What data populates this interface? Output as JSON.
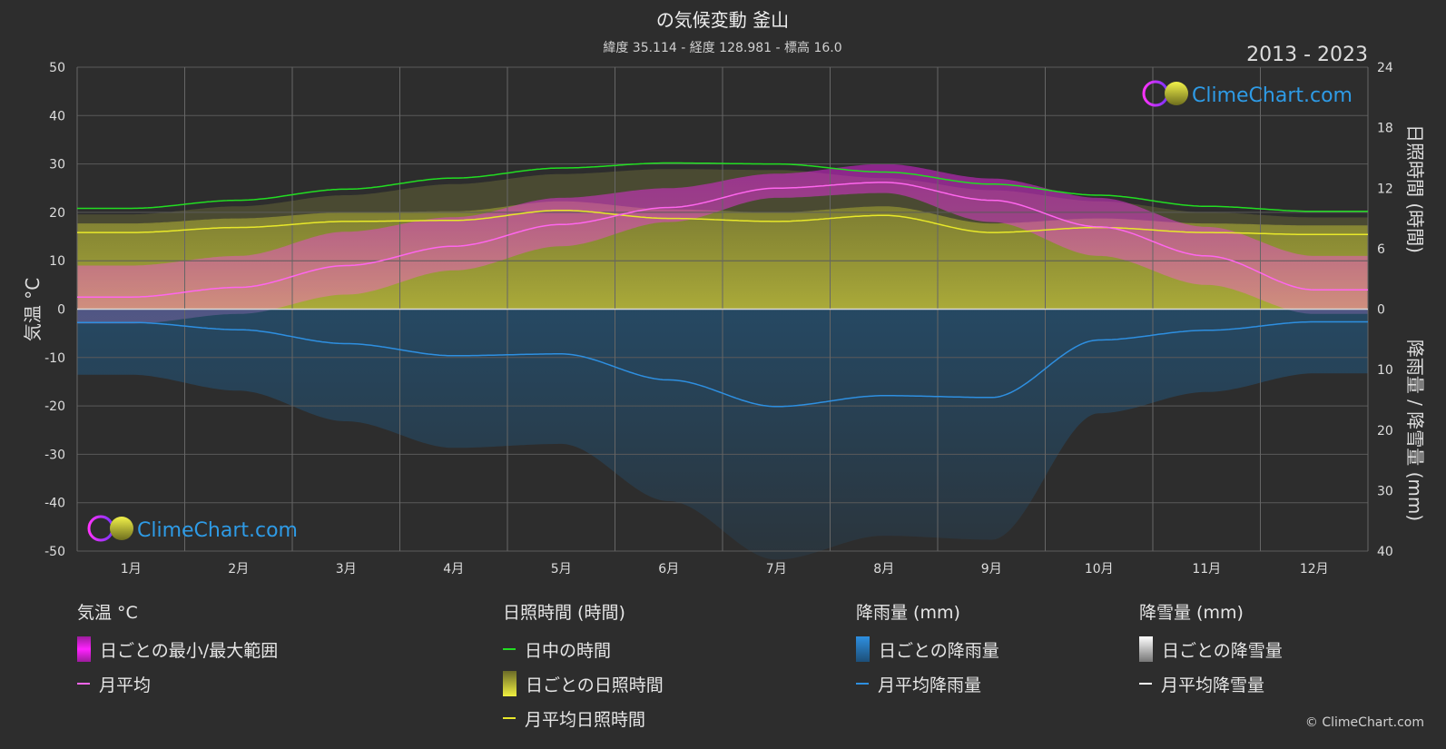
{
  "chart_data": {
    "type": "line",
    "title": "の気候変動 釜山",
    "subtitle": "緯度 35.114 - 経度 128.981 - 標高 16.0",
    "period": "2013 - 2023",
    "categories": [
      "1月",
      "2月",
      "3月",
      "4月",
      "5月",
      "6月",
      "7月",
      "8月",
      "9月",
      "10月",
      "11月",
      "12月"
    ],
    "y_left": {
      "label": "気温 °C",
      "ylim": [
        -50,
        50
      ],
      "ticks": [
        50,
        40,
        30,
        20,
        10,
        0,
        -10,
        -20,
        -30,
        -40,
        -50
      ]
    },
    "y_right_top": {
      "label": "日照時間 (時間)",
      "ylim": [
        0,
        24
      ],
      "ticks": [
        24,
        18,
        12,
        6,
        0
      ]
    },
    "y_right_bottom": {
      "label": "降雨量 / 降雪量 (mm)",
      "ylim": [
        0,
        40
      ],
      "ticks": [
        10,
        20,
        30,
        40
      ]
    },
    "grid": true,
    "series": [
      {
        "name": "日中の時間",
        "axis": "sunshine_hours",
        "color": "#22dd22",
        "values": [
          10.0,
          10.8,
          11.9,
          13.0,
          14.0,
          14.5,
          14.4,
          13.6,
          12.4,
          11.3,
          10.2,
          9.7
        ]
      },
      {
        "name": "月平均",
        "axis": "temperature_c",
        "color": "#ff66ee",
        "values": [
          2.5,
          4.5,
          9.0,
          13.0,
          17.5,
          21.0,
          25.0,
          26.2,
          22.5,
          17.0,
          11.0,
          4.0
        ]
      },
      {
        "name": "月平均日照時間",
        "axis": "sunshine_hours",
        "color": "#e8e82a",
        "values": [
          7.6,
          8.1,
          8.7,
          8.8,
          9.8,
          9.0,
          8.7,
          9.3,
          7.6,
          8.1,
          7.6,
          7.4
        ]
      },
      {
        "name": "月平均降雨量",
        "axis": "rain_mm",
        "color": "#2e8fe0",
        "values": [
          2.2,
          3.4,
          5.7,
          7.7,
          7.4,
          11.7,
          16.1,
          14.3,
          14.6,
          5.1,
          3.5,
          2.1
        ]
      },
      {
        "name": "月平均降雪量",
        "axis": "snow_mm",
        "color": "#ffffff",
        "values": [
          0,
          0,
          0,
          0,
          0,
          0,
          0,
          0,
          0,
          0,
          0,
          0
        ]
      },
      {
        "name": "日ごとの最小/最大範囲",
        "axis": "temperature_c",
        "color": "#e01ee0",
        "min": [
          -3,
          -1,
          3,
          8,
          13,
          18,
          23,
          24,
          18,
          11,
          5,
          -1
        ],
        "max": [
          9,
          11,
          16,
          19,
          23,
          25,
          28,
          30,
          27,
          23,
          17,
          11
        ]
      }
    ]
  },
  "watermark": "ClimeChart.com",
  "copyright": "© ClimeChart.com",
  "legend": {
    "temperature": {
      "header": "気温 °C",
      "range": "日ごとの最小/最大範囲",
      "avg": "月平均"
    },
    "sunshine": {
      "header": "日照時間 (時間)",
      "daylight": "日中の時間",
      "daily": "日ごとの日照時間",
      "avg": "月平均日照時間"
    },
    "rain": {
      "header": "降雨量 (mm)",
      "daily": "日ごとの降雨量",
      "avg": "月平均降雨量"
    },
    "snow": {
      "header": "降雪量 (mm)",
      "daily": "日ごとの降雪量",
      "avg": "月平均降雪量"
    }
  }
}
